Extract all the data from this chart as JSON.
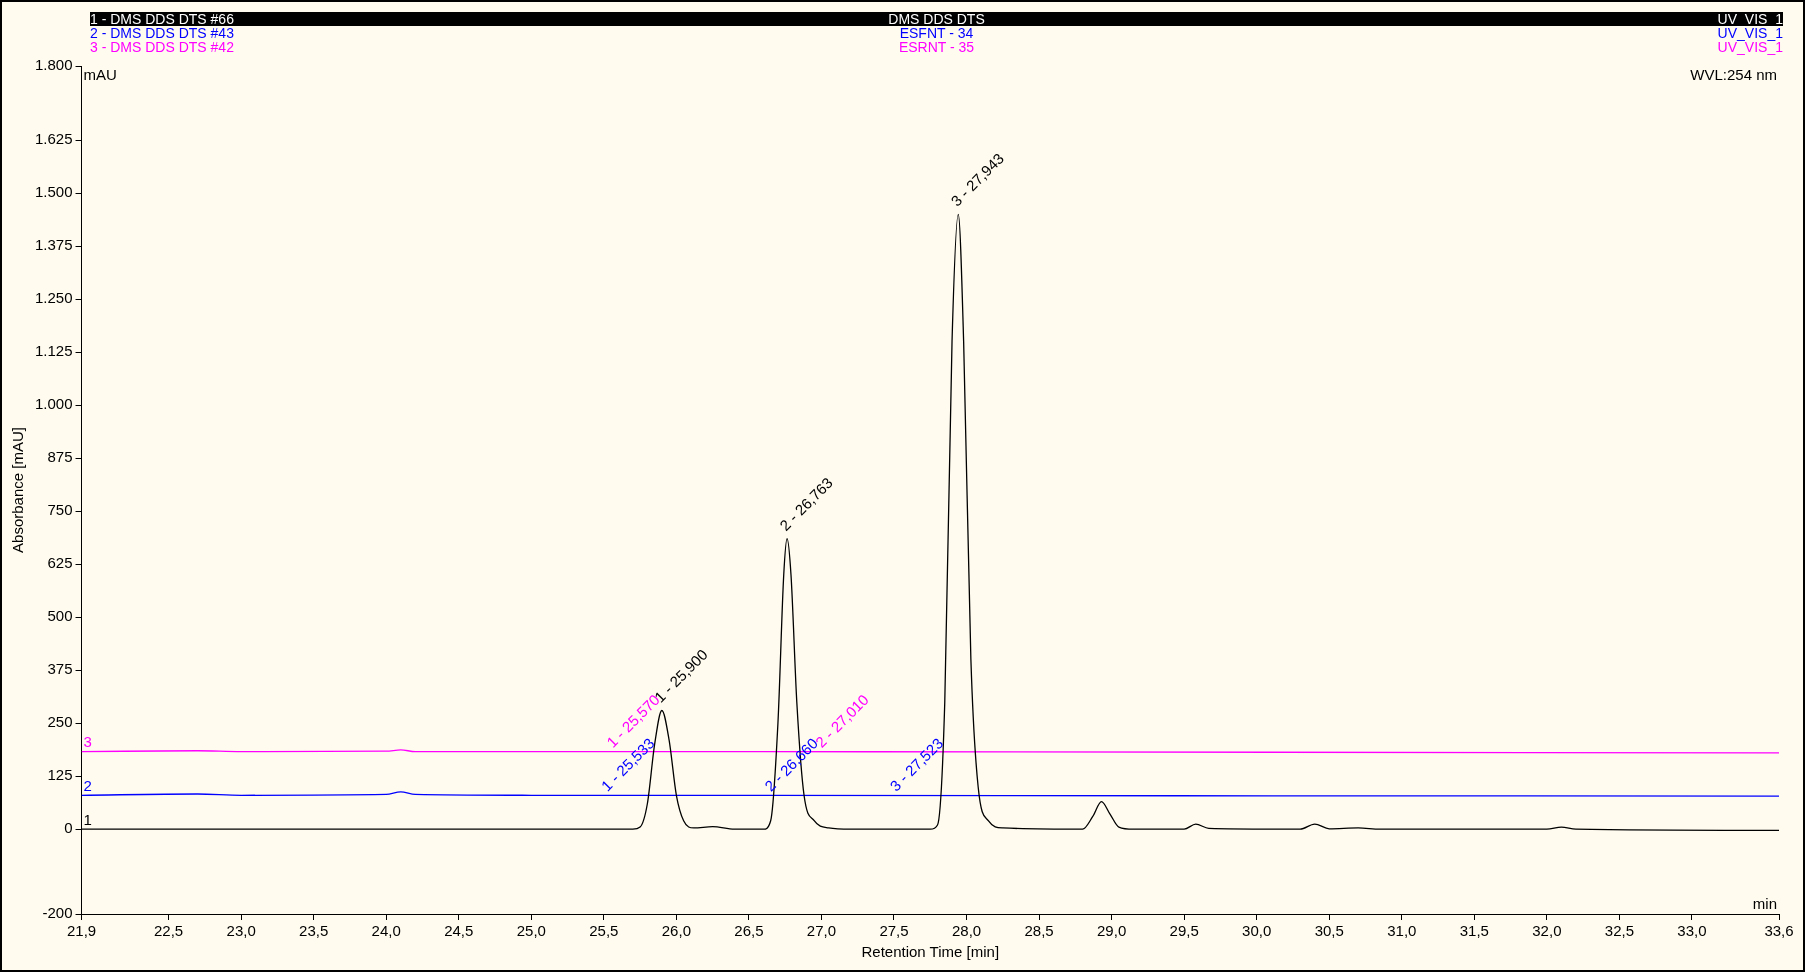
{
  "chart_data": {
    "type": "line",
    "xlabel": "Retention Time [min]",
    "ylabel": "Absorbance [mAU]",
    "legend": "top",
    "grid": false,
    "marker": "none",
    "xlim": [
      21.9,
      33.6
    ],
    "xticks": [
      {
        "value": 21.9,
        "label": "21,9"
      },
      {
        "value": 22.5,
        "label": "22,5"
      },
      {
        "value": 23,
        "label": "23,0"
      },
      {
        "value": 23.5,
        "label": "23,5"
      },
      {
        "value": 24,
        "label": "24,0"
      },
      {
        "value": 24.5,
        "label": "24,5"
      },
      {
        "value": 25,
        "label": "25,0"
      },
      {
        "value": 25.5,
        "label": "25,5"
      },
      {
        "value": 26,
        "label": "26,0"
      },
      {
        "value": 26.5,
        "label": "26,5"
      },
      {
        "value": 27,
        "label": "27,0"
      },
      {
        "value": 27.5,
        "label": "27,5"
      },
      {
        "value": 28,
        "label": "28,0"
      },
      {
        "value": 28.5,
        "label": "28,5"
      },
      {
        "value": 29,
        "label": "29,0"
      },
      {
        "value": 29.5,
        "label": "29,5"
      },
      {
        "value": 30,
        "label": "30,0"
      },
      {
        "value": 30.5,
        "label": "30,5"
      },
      {
        "value": 31,
        "label": "31,0"
      },
      {
        "value": 31.5,
        "label": "31,5"
      },
      {
        "value": 32,
        "label": "32,0"
      },
      {
        "value": 32.5,
        "label": "32,5"
      },
      {
        "value": 33,
        "label": "33,0"
      },
      {
        "value": 33.6,
        "label": "33,6"
      }
    ],
    "ylim": [
      -200,
      1800
    ],
    "yticks": [
      -200,
      0,
      125,
      250,
      375,
      500,
      625,
      750,
      875,
      {
        "value": 1000,
        "label": "1.000"
      },
      {
        "value": 1125,
        "label": "1.125"
      },
      {
        "value": 1250,
        "label": "1.250"
      },
      {
        "value": 1375,
        "label": "1.375"
      },
      {
        "value": 1500,
        "label": "1.500"
      },
      {
        "value": 1625,
        "label": "1.625"
      },
      {
        "value": 1800,
        "label": "1.800"
      }
    ],
    "series": [
      {
        "name": "1 - DMS DDS DTS #66",
        "color": "#000000",
        "x": [
          21.9,
          25.7,
          25.75,
          25.8,
          25.85,
          25.9,
          25.95,
          26.0,
          26.05,
          26.12,
          26.25,
          26.4,
          26.6,
          26.65,
          26.7,
          26.74,
          26.763,
          26.79,
          26.83,
          26.88,
          26.95,
          27.05,
          27.2,
          27.75,
          27.8,
          27.85,
          27.9,
          27.943,
          27.98,
          28.03,
          28.08,
          28.15,
          28.25,
          28.8,
          28.87,
          28.93,
          28.99,
          29.05,
          29.15,
          29.5,
          29.58,
          29.67,
          30.3,
          30.4,
          30.5,
          30.7,
          30.85,
          32.0,
          32.1,
          32.2,
          33.6
        ],
        "values": [
          0,
          0,
          5,
          60,
          200,
          280,
          210,
          80,
          20,
          3,
          6,
          0,
          0,
          20,
          250,
          600,
          685,
          600,
          300,
          80,
          20,
          3,
          0,
          0,
          10,
          300,
          1150,
          1450,
          1150,
          400,
          100,
          20,
          3,
          0,
          30,
          65,
          35,
          5,
          0,
          0,
          12,
          2,
          0,
          12,
          1,
          3,
          0,
          0,
          5,
          0,
          -3
        ]
      },
      {
        "name": "2 - DMS DDS DTS #43",
        "color": "#0000ff",
        "x": [
          21.9,
          22.7,
          23.0,
          24.0,
          24.1,
          24.2,
          25.0,
          33.6
        ],
        "values": [
          80,
          83,
          80,
          82,
          88,
          82,
          80,
          78
        ]
      },
      {
        "name": "3 - DMS DDS DTS #42",
        "color": "#ff00ff",
        "x": [
          21.9,
          22.7,
          23.0,
          24.0,
          24.1,
          24.2,
          25.0,
          33.6
        ],
        "values": [
          183,
          185,
          183,
          184,
          187,
          183,
          183,
          180
        ]
      }
    ],
    "annotations": [
      "DMS DDS DTS",
      "UV_VIS_1",
      "ESFNT - 34",
      "UV_VIS_1",
      "ESRNT - 35",
      "UV_VIS_1",
      "mAU",
      "WVL:254 nm",
      "min",
      {
        "text": "1 - 25,900",
        "x": 25.9,
        "y": 280
      },
      {
        "text": "2 - 26,763",
        "x": 26.763,
        "y": 685
      },
      {
        "text": "3 - 27,943",
        "x": 27.943,
        "y": 1450
      },
      {
        "text": "1 - 25,533",
        "x": 25.533,
        "y": 80
      },
      {
        "text": "2 - 26,660",
        "x": 26.66,
        "y": 80
      },
      {
        "text": "3 - 27,523",
        "x": 27.523,
        "y": 80
      },
      {
        "text": "1 - 25,570",
        "x": 25.57,
        "y": 183
      },
      {
        "text": "2 - 27,010",
        "x": 27.01,
        "y": 183
      },
      {
        "text": "1",
        "x": 21.9,
        "y": 0
      },
      {
        "text": "2",
        "x": 21.9,
        "y": 80
      },
      {
        "text": "3",
        "x": 21.9,
        "y": 183
      }
    ]
  }
}
